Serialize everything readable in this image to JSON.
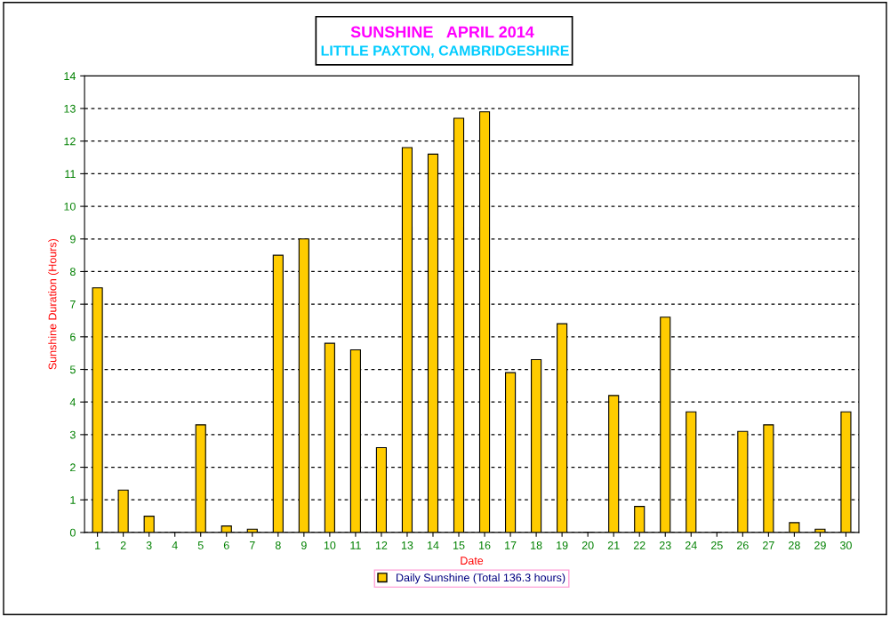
{
  "chart_data": {
    "type": "bar",
    "title": "SUNSHINE   APRIL 2014",
    "subtitle": "LITTLE PAXTON, CAMBRIDGESHIRE",
    "xlabel": "Date",
    "ylabel": "Sunshine Duration (Hours)",
    "categories": [
      "1",
      "2",
      "3",
      "4",
      "5",
      "6",
      "7",
      "8",
      "9",
      "10",
      "11",
      "12",
      "13",
      "14",
      "15",
      "16",
      "17",
      "18",
      "19",
      "20",
      "21",
      "22",
      "23",
      "24",
      "25",
      "26",
      "27",
      "28",
      "29",
      "30"
    ],
    "series": [
      {
        "name": "Daily Sunshine (Total 136.3 hours)",
        "color": "#ffcc00",
        "values": [
          7.5,
          1.3,
          0.5,
          0,
          3.3,
          0.2,
          0.1,
          8.5,
          9.0,
          5.8,
          5.6,
          2.6,
          11.8,
          11.6,
          12.7,
          12.9,
          4.9,
          5.3,
          6.4,
          0,
          4.2,
          0.8,
          6.6,
          3.7,
          0,
          3.1,
          3.3,
          0.3,
          0.1,
          3.7
        ]
      }
    ],
    "ylim": [
      0,
      14
    ],
    "yticks": [
      0,
      1,
      2,
      3,
      4,
      5,
      6,
      7,
      8,
      9,
      10,
      11,
      12,
      13,
      14
    ],
    "grid": "y",
    "legend": "bottom"
  }
}
